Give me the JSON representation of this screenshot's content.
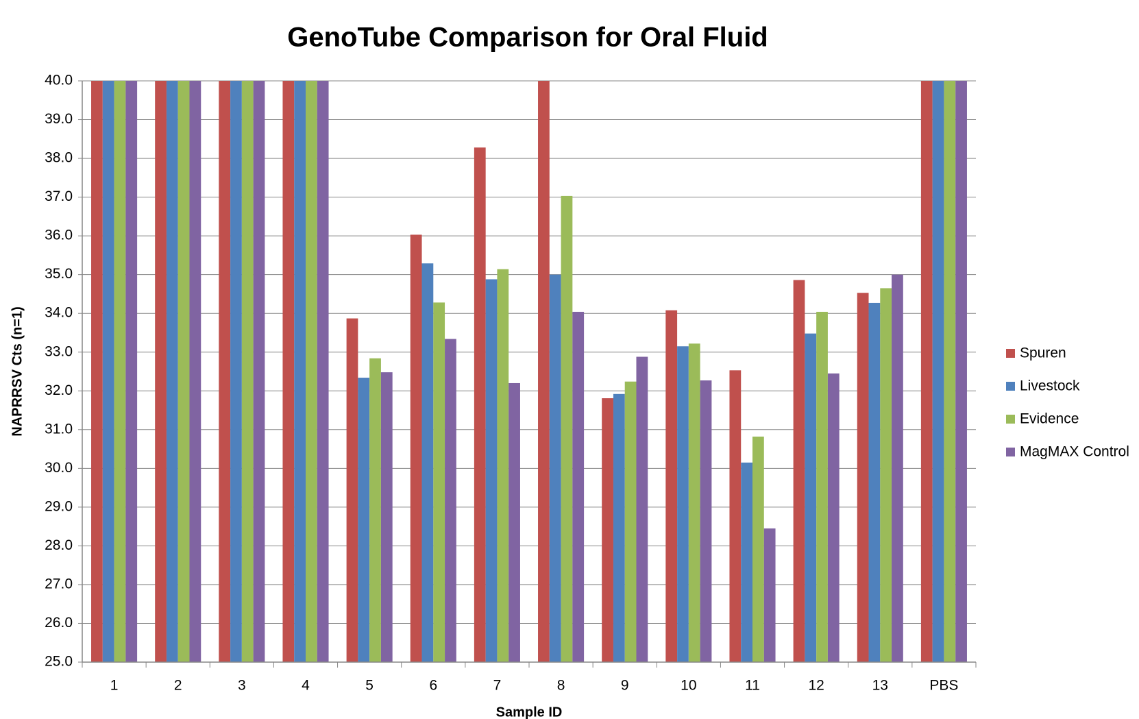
{
  "chart_data": {
    "type": "bar",
    "title": "GenoTube Comparison for Oral Fluid",
    "x_label": "Sample ID",
    "y_label": "NAPRRSV Cts (n=1)",
    "categories": [
      "1",
      "2",
      "3",
      "4",
      "5",
      "6",
      "7",
      "8",
      "9",
      "10",
      "11",
      "12",
      "13",
      "PBS"
    ],
    "series": [
      {
        "name": "Spuren",
        "color": "#c0504d",
        "values": [
          40,
          40,
          40,
          40,
          33.87,
          36.03,
          38.28,
          40,
          31.81,
          34.08,
          32.53,
          34.86,
          34.53,
          40
        ]
      },
      {
        "name": "Livestock",
        "color": "#4f81bd",
        "values": [
          40,
          40,
          40,
          40,
          32.34,
          35.29,
          34.88,
          35.0,
          31.92,
          33.15,
          30.15,
          33.48,
          34.27,
          40
        ]
      },
      {
        "name": "Evidence",
        "color": "#9bbb59",
        "values": [
          40,
          40,
          40,
          40,
          32.84,
          34.28,
          35.14,
          37.03,
          32.24,
          33.22,
          30.82,
          34.04,
          34.65,
          40
        ]
      },
      {
        "name": "MagMAX Control",
        "color": "#8064a2",
        "values": [
          40,
          40,
          40,
          40,
          32.48,
          33.34,
          32.2,
          34.04,
          32.88,
          32.27,
          28.45,
          32.45,
          35.0,
          40
        ]
      }
    ],
    "ylim": [
      25,
      40
    ],
    "yticks": [
      {
        "value": 25,
        "label": "25.0"
      },
      {
        "value": 26,
        "label": "26.0"
      },
      {
        "value": 27,
        "label": "27.0"
      },
      {
        "value": 28,
        "label": "28.0"
      },
      {
        "value": 29,
        "label": "29.0"
      },
      {
        "value": 30,
        "label": "30.0"
      },
      {
        "value": 31,
        "label": "31.0"
      },
      {
        "value": 32,
        "label": "32.0"
      },
      {
        "value": 33,
        "label": "33.0"
      },
      {
        "value": 34,
        "label": "34.0"
      },
      {
        "value": 35,
        "label": "35.0"
      },
      {
        "value": 36,
        "label": "36.0"
      },
      {
        "value": 37,
        "label": "37.0"
      },
      {
        "value": 38,
        "label": "38.0"
      },
      {
        "value": 39,
        "label": "39.0"
      },
      {
        "value": 40,
        "label": "40.0"
      }
    ],
    "grid": true,
    "legend": "right"
  }
}
